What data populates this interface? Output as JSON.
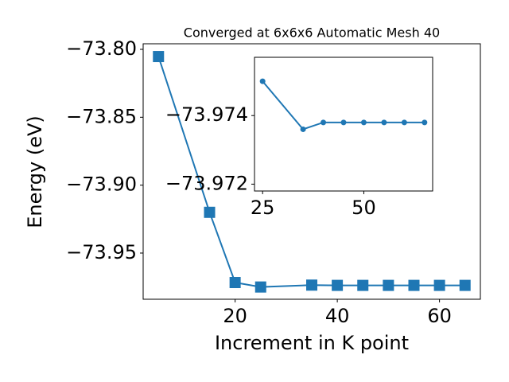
{
  "chart_data": [
    {
      "type": "line",
      "title": "Converged at 6x6x6 Automatic Mesh 40",
      "xlabel": "Increment in K point",
      "ylabel": "Energy (eV)",
      "x": [
        5,
        15,
        20,
        25,
        35,
        40,
        45,
        50,
        55,
        60,
        65
      ],
      "series": [
        {
          "color": "#1f77b4",
          "marker": "square",
          "values": [
            -73.8053,
            -73.92,
            -73.9717,
            -73.975,
            -73.9736,
            -73.9738,
            -73.9738,
            -73.9738,
            -73.9738,
            -73.9738,
            -73.9738
          ]
        }
      ],
      "xlim": [
        2,
        68
      ],
      "xticks": [
        20,
        40,
        60
      ],
      "ylim": [
        -73.984,
        -73.7959
      ],
      "yticks": [
        {
          "value": -73.8,
          "label": "−73.80"
        },
        {
          "value": -73.85,
          "label": "−73.85"
        },
        {
          "value": -73.9,
          "label": "−73.90"
        },
        {
          "value": -73.95,
          "label": "−73.95"
        }
      ]
    },
    {
      "type": "line",
      "inset": true,
      "x": [
        25,
        35,
        40,
        45,
        50,
        55,
        60,
        65
      ],
      "series": [
        {
          "color": "#1f77b4",
          "marker": "circle",
          "values": [
            -73.975,
            -73.9736,
            -73.9738,
            -73.9738,
            -73.9738,
            -73.9738,
            -73.9738,
            -73.9738
          ]
        }
      ],
      "xlim": [
        23,
        67
      ],
      "xticks": [
        25,
        50
      ],
      "ylim": [
        -73.9757,
        -73.9718
      ],
      "y_inverted": true,
      "yticks": [
        {
          "value": -73.974,
          "label": "−73.974"
        },
        {
          "value": -73.972,
          "label": "−73.972"
        }
      ]
    }
  ]
}
